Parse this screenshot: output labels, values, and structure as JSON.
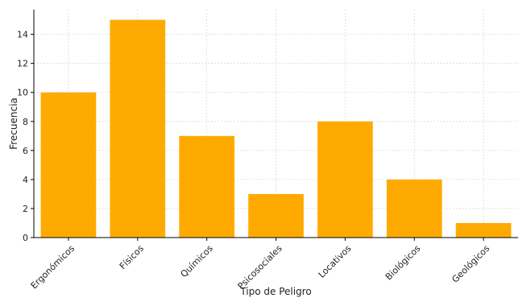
{
  "chart_data": {
    "type": "bar",
    "title": "",
    "xlabel": "Tipo de Peligro",
    "ylabel": "Frecuencia",
    "categories": [
      "Ergonómicos",
      "Físicos",
      "Químicos",
      "Psicosociales",
      "Locativos",
      "Biológicos",
      "Geológicos"
    ],
    "values": [
      10,
      15,
      7,
      3,
      8,
      4,
      1
    ],
    "ylim": [
      0,
      15.7
    ],
    "yticks": [
      0,
      2,
      4,
      6,
      8,
      10,
      12,
      14
    ],
    "grid": true,
    "bar_color": "#FFAA00",
    "grid_color": "#d9d9d9"
  }
}
